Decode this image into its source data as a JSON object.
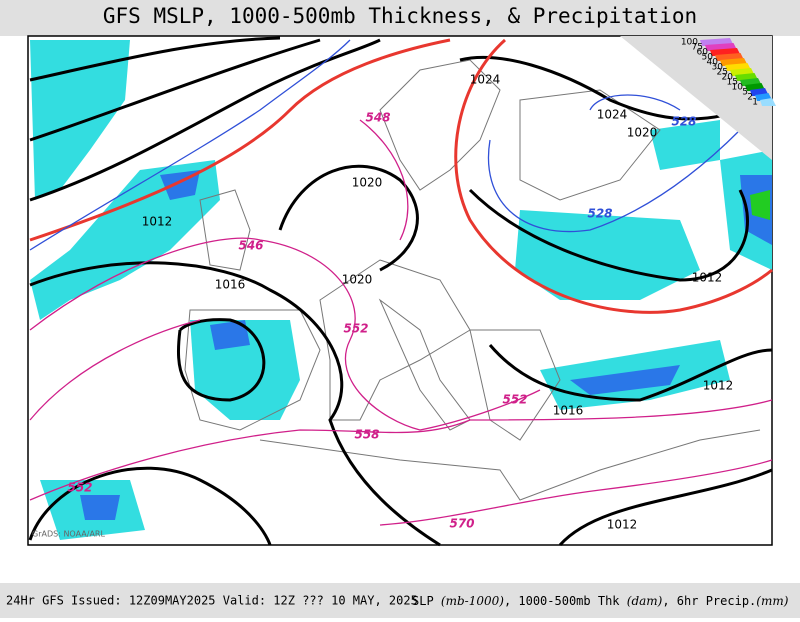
{
  "header": {
    "title": "GFS MSLP, 1000-500mb Thickness, & Precipitation"
  },
  "map": {
    "credit": "GrADS: NOAA/ARL",
    "pressure_labels": [
      1024,
      1024,
      1020,
      1020,
      1012,
      1020,
      1016,
      1012,
      1012,
      1016,
      1012
    ],
    "thickness_labels": [
      548,
      528,
      546,
      528,
      552,
      552,
      558,
      552,
      570
    ],
    "colorbar_labels": [
      100,
      75,
      60,
      50,
      40,
      30,
      25,
      20,
      15,
      10,
      5,
      2,
      1
    ]
  },
  "footer": {
    "issued": "24Hr GFS Issued: 12Z09MAY2025 Valid: 12Z ??? 10 MAY, 2025",
    "parts": [
      "SLP ",
      "(mb-1000)",
      ", 1000-500mb Thk ",
      "(dam)",
      ", 6hr Precip.",
      "(mm)"
    ]
  }
}
